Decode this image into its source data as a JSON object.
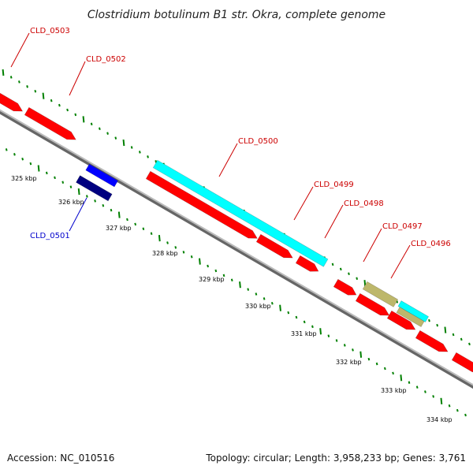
{
  "title": "Clostridium botulinum B1 str. Okra, complete genome",
  "footer": {
    "accession": "Accession: NC_010516",
    "summary": "Topology: circular; Length: 3,958,233 bp; Genes: 3,761"
  },
  "colors": {
    "forward_gene": "#ff0000",
    "reverse_gene": "#0000ff",
    "reverse_gene_dark": "#000080",
    "rna_gene": "#00ffff",
    "other_gene": "#bdb76b",
    "backbone": "#999999",
    "ticks": "#008000",
    "label_forward": "#cc0000",
    "label_reverse": "#0000cc"
  },
  "scale": {
    "unit": "kbp",
    "labels": [
      "325 kbp",
      "326 kbp",
      "327 kbp",
      "328 kbp",
      "329 kbp",
      "330 kbp",
      "331 kbp",
      "332 kbp",
      "333 kbp",
      "334 kbp"
    ]
  },
  "gene_labels": {
    "CLD_0503": "CLD_0503",
    "CLD_0502": "CLD_0502",
    "CLD_0501": "CLD_0501",
    "CLD_0500": "CLD_0500",
    "CLD_0499": "CLD_0499",
    "CLD_0498": "CLD_0498",
    "CLD_0497": "CLD_0497",
    "CLD_0496": "CLD_0496"
  }
}
